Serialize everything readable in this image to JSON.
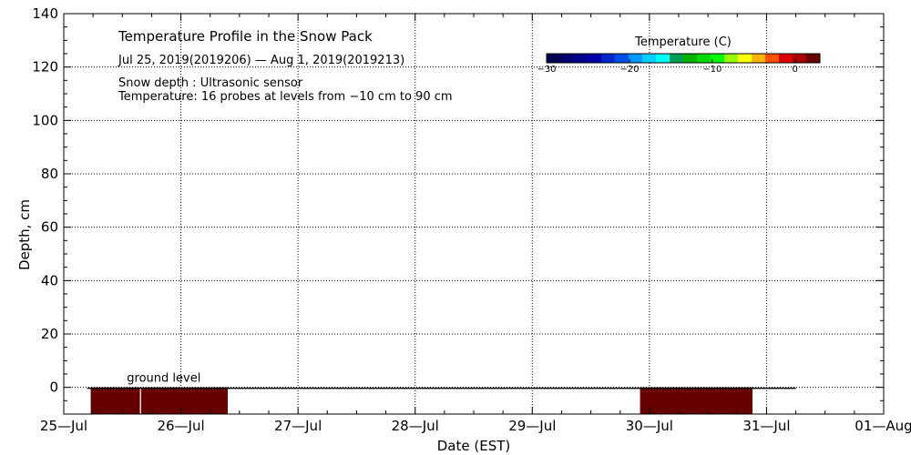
{
  "chart_data": {
    "type": "heatmap",
    "title": "Temperature Profile in the Snow Pack",
    "subtitle": "Jul 25, 2019(2019206) — Aug  1, 2019(2019213)",
    "notes": [
      "Snow depth : Ultrasonic sensor",
      "Temperature: 16 probes at levels from −10 cm to 90 cm"
    ],
    "xlabel": "Date (EST)",
    "ylabel": "Depth, cm",
    "x_ticks": [
      "25—Jul",
      "26—Jul",
      "27—Jul",
      "28—Jul",
      "29—Jul",
      "30—Jul",
      "31—Jul",
      "01—Aug"
    ],
    "y_ticks": [
      "0",
      "20",
      "40",
      "60",
      "80",
      "100",
      "120",
      "140"
    ],
    "ylim": [
      -10,
      140
    ],
    "xlim_days": [
      0,
      7
    ],
    "grid": true,
    "ground_level_label": "ground level",
    "ground_level_depth": 0,
    "ground_line_days": [
      0.2,
      6.25
    ],
    "temperature_blocks": [
      {
        "start_day": 0.23,
        "end_day": 0.65,
        "depth_top": 0,
        "depth_bottom": -10,
        "color": "#660000"
      },
      {
        "start_day": 0.66,
        "end_day": 1.4,
        "depth_top": 0,
        "depth_bottom": -10,
        "color": "#660000"
      },
      {
        "start_day": 4.92,
        "end_day": 5.88,
        "depth_top": 0,
        "depth_bottom": -10,
        "color": "#660000"
      }
    ],
    "colorbar": {
      "title": "Temperature (C)",
      "range": [
        -30,
        3
      ],
      "tick_labels": [
        "−30",
        "−20",
        "−10",
        "0"
      ],
      "tick_values": [
        -30,
        -20,
        -10,
        0
      ],
      "colors": [
        "#000050",
        "#00006e",
        "#00008c",
        "#0000aa",
        "#0028c8",
        "#0050f0",
        "#0096ff",
        "#00d2ff",
        "#00ffff",
        "#00a050",
        "#00b400",
        "#00dc00",
        "#00ff00",
        "#96ff00",
        "#ffff00",
        "#ffb400",
        "#ff5000",
        "#dc0000",
        "#aa0000",
        "#660000"
      ]
    }
  }
}
